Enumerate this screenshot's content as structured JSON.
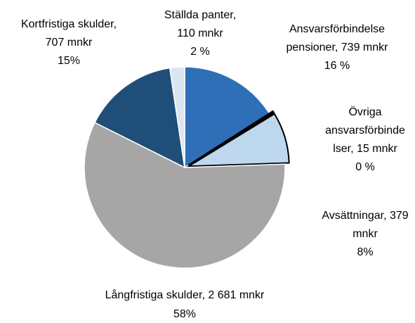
{
  "chart_data": {
    "type": "pie",
    "categories": [
      "Ansvarsförbindelse pensioner",
      "Övriga ansvarsförbindelser",
      "Avsättningar",
      "Långfristiga skulder",
      "Kortfristiga skulder",
      "Ställda panter"
    ],
    "values": [
      739,
      15,
      379,
      2681,
      707,
      110
    ],
    "value_labels": [
      [
        "Ansvarsförbindelse",
        "pensioner, 739 mnkr",
        "16 %"
      ],
      [
        "Övriga",
        "ansvarsförbinde",
        "lser, 15 mnkr",
        "0 %"
      ],
      [
        "Avsättningar, 379",
        "mnkr",
        "8%"
      ],
      [
        "Långfristiga skulder, 2 681 mnkr",
        "58%"
      ],
      [
        "Kortfristiga skulder,",
        "707 mnkr",
        "15%"
      ],
      [
        "Ställda panter,",
        "110 mnkr",
        "2 %"
      ]
    ],
    "colors": [
      "#2e6fb7",
      "#000000",
      "#bdd7ee",
      "#a6a6a6",
      "#1f4e79",
      "#dce6f2"
    ]
  }
}
